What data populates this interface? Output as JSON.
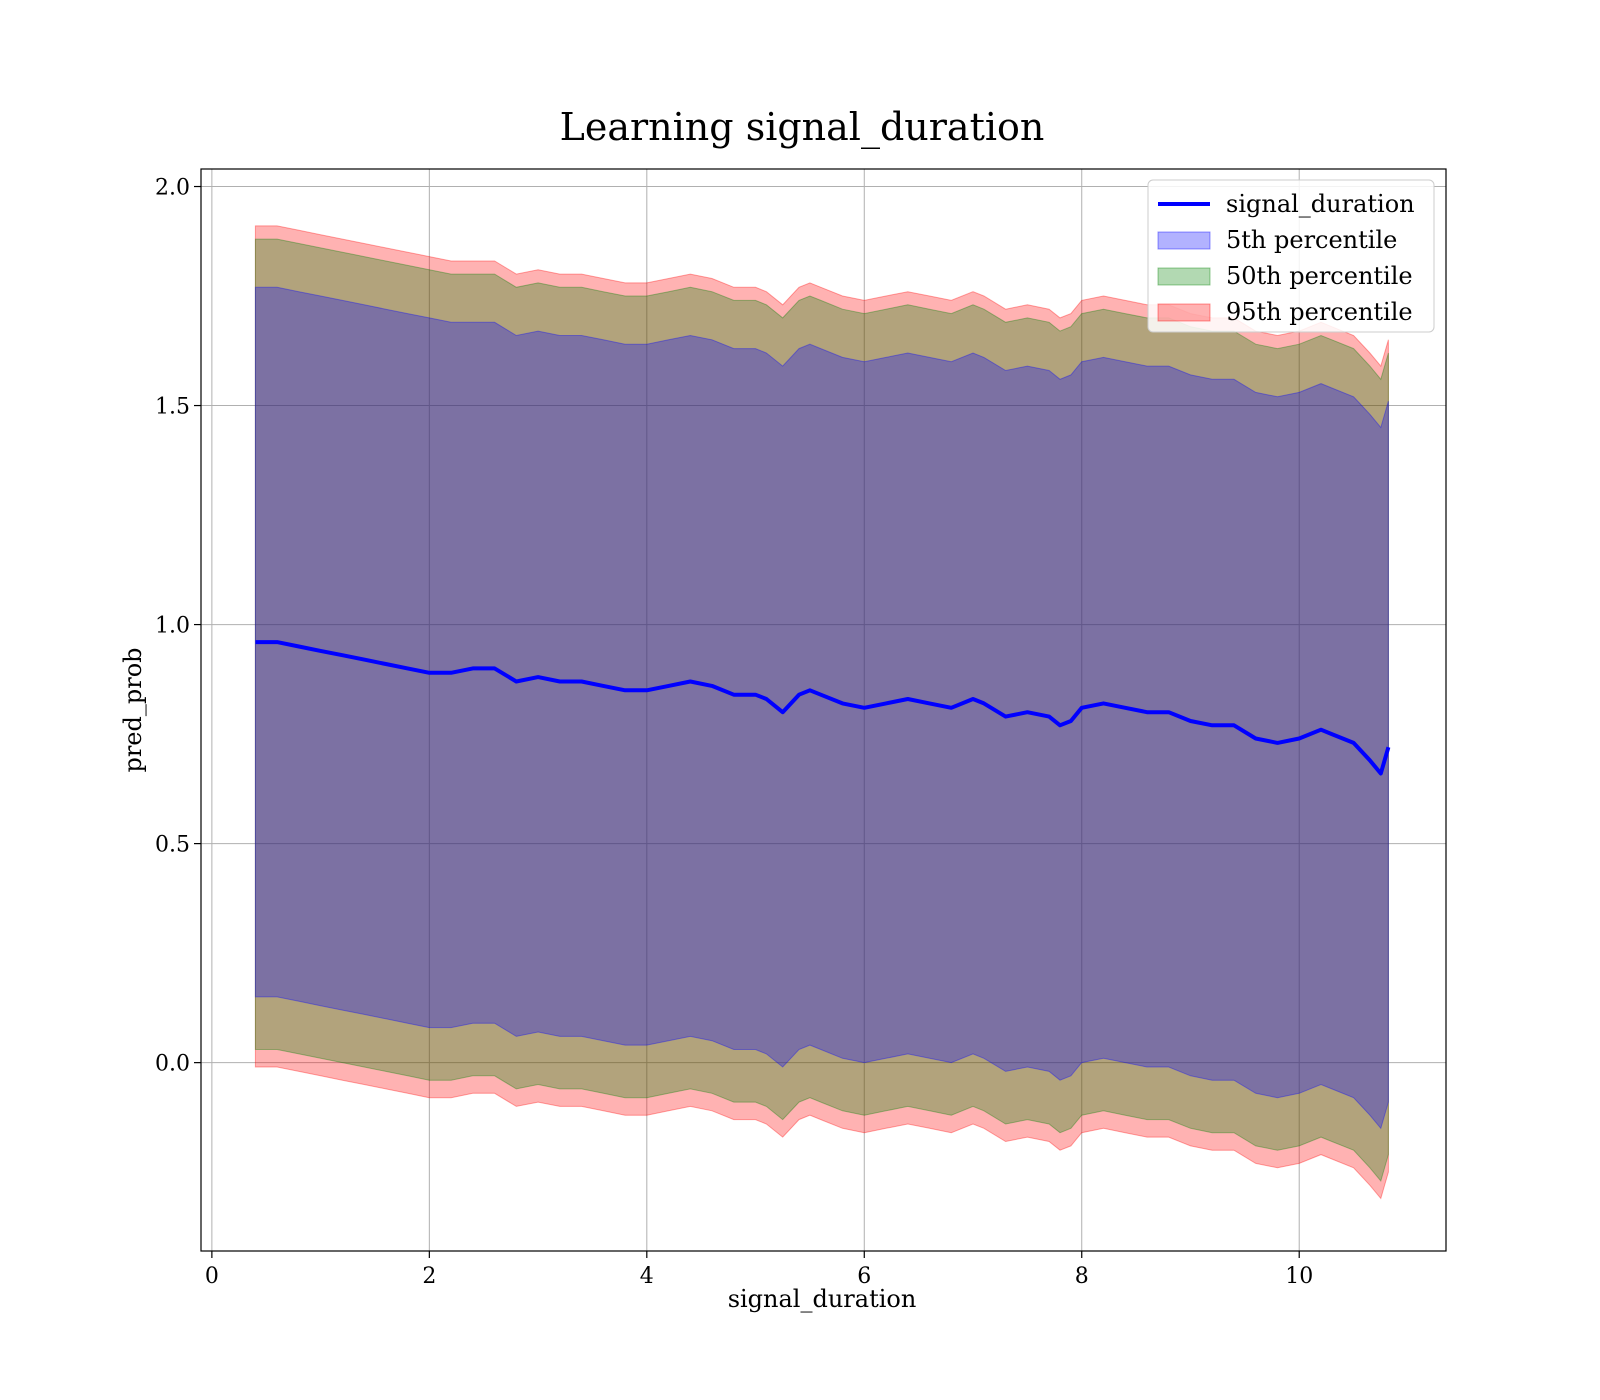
{
  "chart_data": {
    "type": "area",
    "title": "Learning signal_duration",
    "xlabel": "signal_duration",
    "ylabel": "pred_prob",
    "xlim": [
      -0.1,
      11.35
    ],
    "ylim": [
      -0.43,
      2.04
    ],
    "xticks": [
      0,
      2,
      4,
      6,
      8,
      10
    ],
    "yticks": [
      0.0,
      0.5,
      1.0,
      1.5,
      2.0
    ],
    "xtick_labels": [
      "0",
      "2",
      "4",
      "6",
      "8",
      "10"
    ],
    "ytick_labels": [
      "0.0",
      "0.5",
      "1.0",
      "1.5",
      "2.0"
    ],
    "grid": true,
    "legend_position": "top-right",
    "x": [
      0.4,
      0.6,
      0.8,
      1.0,
      1.2,
      1.4,
      1.6,
      1.8,
      2.0,
      2.2,
      2.4,
      2.6,
      2.8,
      3.0,
      3.2,
      3.4,
      3.6,
      3.8,
      4.0,
      4.2,
      4.4,
      4.6,
      4.8,
      5.0,
      5.1,
      5.25,
      5.4,
      5.5,
      5.6,
      5.8,
      6.0,
      6.2,
      6.4,
      6.6,
      6.8,
      7.0,
      7.1,
      7.3,
      7.5,
      7.7,
      7.8,
      7.9,
      8.0,
      8.2,
      8.4,
      8.6,
      8.8,
      9.0,
      9.2,
      9.4,
      9.6,
      9.8,
      10.0,
      10.2,
      10.3,
      10.5,
      10.65,
      10.75,
      10.82
    ],
    "line": {
      "name": "signal_duration",
      "color": "#0000ff",
      "values": [
        0.96,
        0.96,
        0.95,
        0.94,
        0.93,
        0.92,
        0.91,
        0.9,
        0.89,
        0.89,
        0.9,
        0.9,
        0.87,
        0.88,
        0.87,
        0.87,
        0.86,
        0.85,
        0.85,
        0.86,
        0.87,
        0.86,
        0.84,
        0.84,
        0.83,
        0.8,
        0.84,
        0.85,
        0.84,
        0.82,
        0.81,
        0.82,
        0.83,
        0.82,
        0.81,
        0.83,
        0.82,
        0.79,
        0.8,
        0.79,
        0.77,
        0.78,
        0.81,
        0.82,
        0.81,
        0.8,
        0.8,
        0.78,
        0.77,
        0.77,
        0.74,
        0.73,
        0.74,
        0.76,
        0.75,
        0.73,
        0.69,
        0.66,
        0.72
      ]
    },
    "series": [
      {
        "name": "95th percentile",
        "color": "#ff0000",
        "opacity": 0.3,
        "upper": [
          1.91,
          1.91,
          1.9,
          1.89,
          1.88,
          1.87,
          1.86,
          1.85,
          1.84,
          1.83,
          1.83,
          1.83,
          1.8,
          1.81,
          1.8,
          1.8,
          1.79,
          1.78,
          1.78,
          1.79,
          1.8,
          1.79,
          1.77,
          1.77,
          1.76,
          1.73,
          1.77,
          1.78,
          1.77,
          1.75,
          1.74,
          1.75,
          1.76,
          1.75,
          1.74,
          1.76,
          1.75,
          1.72,
          1.73,
          1.72,
          1.7,
          1.71,
          1.74,
          1.75,
          1.74,
          1.73,
          1.73,
          1.71,
          1.7,
          1.7,
          1.67,
          1.66,
          1.67,
          1.69,
          1.68,
          1.66,
          1.62,
          1.59,
          1.65
        ],
        "lower": [
          -0.01,
          -0.01,
          -0.02,
          -0.03,
          -0.04,
          -0.05,
          -0.06,
          -0.07,
          -0.08,
          -0.08,
          -0.07,
          -0.07,
          -0.1,
          -0.09,
          -0.1,
          -0.1,
          -0.11,
          -0.12,
          -0.12,
          -0.11,
          -0.1,
          -0.11,
          -0.13,
          -0.13,
          -0.14,
          -0.17,
          -0.13,
          -0.12,
          -0.13,
          -0.15,
          -0.16,
          -0.15,
          -0.14,
          -0.15,
          -0.16,
          -0.14,
          -0.15,
          -0.18,
          -0.17,
          -0.18,
          -0.2,
          -0.19,
          -0.16,
          -0.15,
          -0.16,
          -0.17,
          -0.17,
          -0.19,
          -0.2,
          -0.2,
          -0.23,
          -0.24,
          -0.23,
          -0.21,
          -0.22,
          -0.24,
          -0.28,
          -0.31,
          -0.25
        ]
      },
      {
        "name": "50th percentile",
        "color": "#008000",
        "opacity": 0.3,
        "upper": [
          1.88,
          1.88,
          1.87,
          1.86,
          1.85,
          1.84,
          1.83,
          1.82,
          1.81,
          1.8,
          1.8,
          1.8,
          1.77,
          1.78,
          1.77,
          1.77,
          1.76,
          1.75,
          1.75,
          1.76,
          1.77,
          1.76,
          1.74,
          1.74,
          1.73,
          1.7,
          1.74,
          1.75,
          1.74,
          1.72,
          1.71,
          1.72,
          1.73,
          1.72,
          1.71,
          1.73,
          1.72,
          1.69,
          1.7,
          1.69,
          1.67,
          1.68,
          1.71,
          1.72,
          1.71,
          1.7,
          1.7,
          1.68,
          1.67,
          1.67,
          1.64,
          1.63,
          1.64,
          1.66,
          1.65,
          1.63,
          1.59,
          1.56,
          1.62
        ],
        "lower": [
          0.03,
          0.03,
          0.02,
          0.01,
          0.0,
          -0.01,
          -0.02,
          -0.03,
          -0.04,
          -0.04,
          -0.03,
          -0.03,
          -0.06,
          -0.05,
          -0.06,
          -0.06,
          -0.07,
          -0.08,
          -0.08,
          -0.07,
          -0.06,
          -0.07,
          -0.09,
          -0.09,
          -0.1,
          -0.13,
          -0.09,
          -0.08,
          -0.09,
          -0.11,
          -0.12,
          -0.11,
          -0.1,
          -0.11,
          -0.12,
          -0.1,
          -0.11,
          -0.14,
          -0.13,
          -0.14,
          -0.16,
          -0.15,
          -0.12,
          -0.11,
          -0.12,
          -0.13,
          -0.13,
          -0.15,
          -0.16,
          -0.16,
          -0.19,
          -0.2,
          -0.19,
          -0.17,
          -0.18,
          -0.2,
          -0.24,
          -0.27,
          -0.21
        ]
      },
      {
        "name": "5th percentile",
        "color": "#0000ff",
        "opacity": 0.3,
        "upper": [
          1.77,
          1.77,
          1.76,
          1.75,
          1.74,
          1.73,
          1.72,
          1.71,
          1.7,
          1.69,
          1.69,
          1.69,
          1.66,
          1.67,
          1.66,
          1.66,
          1.65,
          1.64,
          1.64,
          1.65,
          1.66,
          1.65,
          1.63,
          1.63,
          1.62,
          1.59,
          1.63,
          1.64,
          1.63,
          1.61,
          1.6,
          1.61,
          1.62,
          1.61,
          1.6,
          1.62,
          1.61,
          1.58,
          1.59,
          1.58,
          1.56,
          1.57,
          1.6,
          1.61,
          1.6,
          1.59,
          1.59,
          1.57,
          1.56,
          1.56,
          1.53,
          1.52,
          1.53,
          1.55,
          1.54,
          1.52,
          1.48,
          1.45,
          1.51
        ],
        "lower": [
          0.15,
          0.15,
          0.14,
          0.13,
          0.12,
          0.11,
          0.1,
          0.09,
          0.08,
          0.08,
          0.09,
          0.09,
          0.06,
          0.07,
          0.06,
          0.06,
          0.05,
          0.04,
          0.04,
          0.05,
          0.06,
          0.05,
          0.03,
          0.03,
          0.02,
          -0.01,
          0.03,
          0.04,
          0.03,
          0.01,
          0.0,
          0.01,
          0.02,
          0.01,
          0.0,
          0.02,
          0.01,
          -0.02,
          -0.01,
          -0.02,
          -0.04,
          -0.03,
          0.0,
          0.01,
          0.0,
          -0.01,
          -0.01,
          -0.03,
          -0.04,
          -0.04,
          -0.07,
          -0.08,
          -0.07,
          -0.05,
          -0.06,
          -0.08,
          -0.12,
          -0.15,
          -0.09
        ]
      }
    ],
    "legend": [
      "signal_duration",
      "5th percentile",
      "50th percentile",
      "95th percentile"
    ]
  }
}
